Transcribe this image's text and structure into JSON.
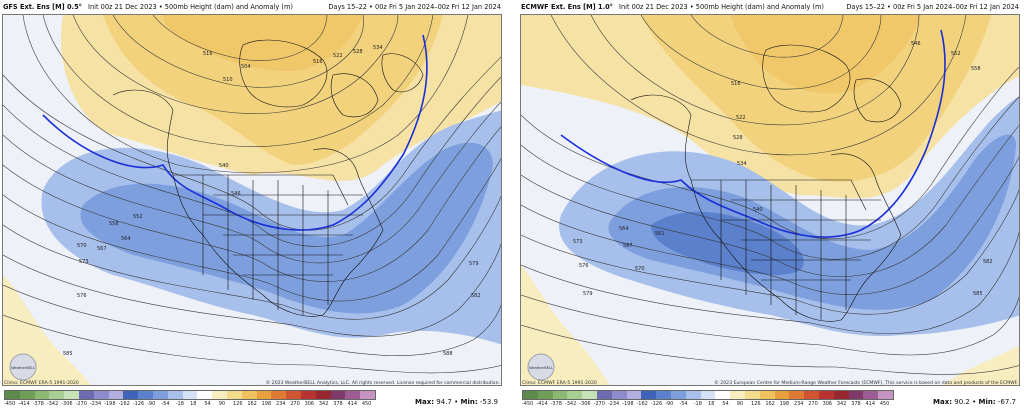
{
  "left": {
    "title": "GFS Ext. Ens [M] 0.5°",
    "init": "Init 00z 21 Dec 2023 • 500mb Height (dam) and Anomaly (m)",
    "days": "Days 15–22 • 00z Fri 5 Jan 2024–00z Fri 12 Jan 2024",
    "climo": "Climo: ECMWF ERA-5 1991-2020",
    "copyright": "© 2023 WeatherBELL Analytics, LLC. All rights reserved. License required for commercial distribution.",
    "max_label": "Max:",
    "max": "94.7",
    "min_label": "Min:",
    "min": "-53.9",
    "contour_labels": [
      "516",
      "504",
      "510",
      "516",
      "522",
      "528",
      "534",
      "540",
      "546",
      "552",
      "558",
      "564",
      "567",
      "570",
      "573",
      "576",
      "579",
      "582",
      "585",
      "588"
    ]
  },
  "right": {
    "title": "ECMWF Ext. Ens [M] 1.0°",
    "init": "Init 00z 21 Dec 2023 • 500mb Height (dam) and Anomaly (m)",
    "days": "Days 15–22 • 00z Fri 5 Jan 2024–00z Fri 12 Jan 2024",
    "climo": "Climo: ECMWF ERA-5 1991-2020",
    "copyright": "© 2023 European Centre for Medium-Range Weather Forecasts (ECMWF). This service is based on data and products of the ECMWF.",
    "max_label": "Max:",
    "max": "90.2",
    "min_label": "Min:",
    "min": "-67.7",
    "contour_labels": [
      "516",
      "522",
      "528",
      "534",
      "540",
      "546",
      "552",
      "558",
      "561",
      "564",
      "567",
      "570",
      "573",
      "576",
      "579",
      "582",
      "585"
    ]
  },
  "logo_text": "WeatherBELL",
  "colorbar": {
    "ticks": [
      "-450",
      "-414",
      "-378",
      "-342",
      "-306",
      "-270",
      "-234",
      "-198",
      "-162",
      "-126",
      "-90",
      "-54",
      "-18",
      "18",
      "54",
      "90",
      "126",
      "162",
      "198",
      "234",
      "270",
      "306",
      "342",
      "378",
      "414",
      "450"
    ],
    "colors": [
      "#5b8a4a",
      "#6e9e58",
      "#8bb873",
      "#a7cf93",
      "#c7e2b6",
      "#6e6cb0",
      "#8e8ccc",
      "#b2aee0",
      "#3f63b8",
      "#5b80cc",
      "#7d9fde",
      "#a7bfeb",
      "#d5e1f5",
      "#ffffff",
      "#f7edbf",
      "#f3dc8c",
      "#efc25e",
      "#e8a03e",
      "#de7a34",
      "#cf5530",
      "#b8332f",
      "#972830",
      "#7f3a69",
      "#9b5b95",
      "#c793c0"
    ]
  }
}
